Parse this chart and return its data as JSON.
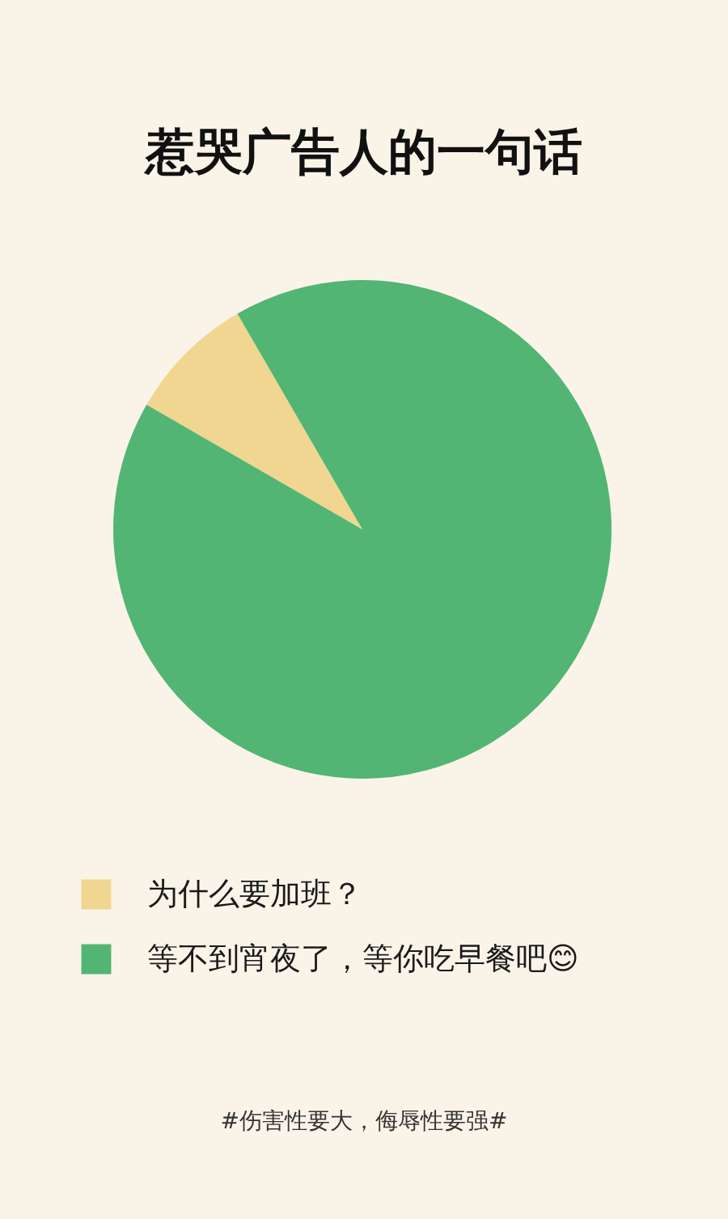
{
  "chart_data": {
    "type": "pie",
    "title": "惹哭广告人的一句话",
    "categories": [
      "为什么要加班？",
      "等不到宵夜了，等你吃早餐吧😊"
    ],
    "values": [
      8.3,
      91.7
    ],
    "colors": [
      "#f0d690",
      "#52b574"
    ],
    "legend": "bottom",
    "annotations": [
      "#伤害性要大，侮辱性要强#"
    ]
  }
}
